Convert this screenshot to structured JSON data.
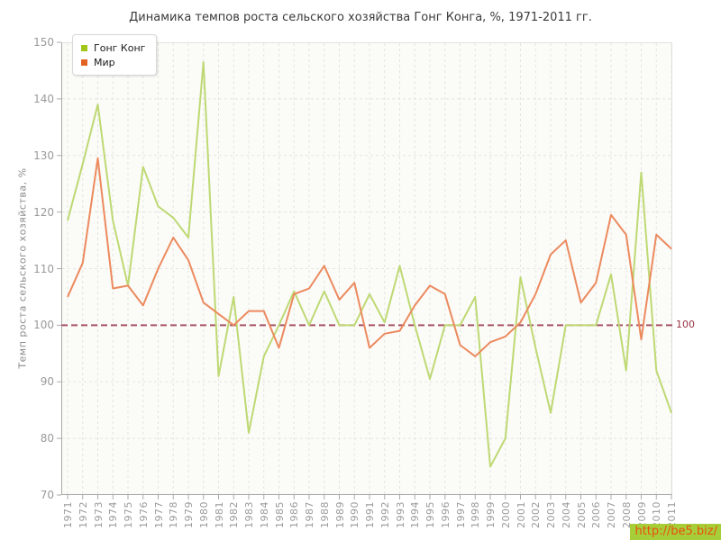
{
  "title": "Динамика темпов роста сельского хозяйства Гонг Конга, %, 1971-2011 гг.",
  "legend": {
    "items": [
      {
        "label": "Гонг Конг",
        "marker_color": "#a2c617"
      },
      {
        "label": "Мир",
        "marker_color": "#e2621f"
      }
    ]
  },
  "y_axis": {
    "title": "Темп роста сельского хозяйства, %",
    "ticks": [
      70,
      80,
      90,
      100,
      110,
      120,
      130,
      140,
      150
    ]
  },
  "guide": {
    "value": 100,
    "label": "100",
    "line_color": "#aa5566",
    "label_color": "#993344"
  },
  "watermark": {
    "text": "http://be5.biz/",
    "bg_color": "#a6ce39",
    "text_color": "#e94f10"
  },
  "chart_data": {
    "type": "line",
    "title": "Динамика темпов роста сельского хозяйства Гонг Конга, %, 1971-2011 гг.",
    "xlabel": "",
    "ylabel": "Темп роста сельского хозяйства, %",
    "ylim": [
      70,
      150
    ],
    "grid": "dashed",
    "legend_position": "top-left",
    "guide_line_y": 100,
    "x": [
      1971,
      1972,
      1973,
      1974,
      1975,
      1976,
      1977,
      1978,
      1979,
      1980,
      1981,
      1982,
      1983,
      1984,
      1985,
      1986,
      1987,
      1988,
      1989,
      1990,
      1991,
      1992,
      1993,
      1994,
      1995,
      1996,
      1997,
      1998,
      1999,
      2000,
      2001,
      2002,
      2003,
      2004,
      2005,
      2006,
      2007,
      2008,
      2009,
      2010,
      2011
    ],
    "series": [
      {
        "name": "Гонг Конг",
        "color": "#bed973",
        "values": [
          118.5,
          128.5,
          139,
          118.5,
          107,
          128,
          121,
          119,
          115.5,
          146.5,
          91,
          105,
          81,
          94.5,
          100,
          106,
          100,
          106,
          100,
          100,
          105.5,
          100.5,
          110.5,
          100,
          90.5,
          100,
          100,
          105,
          75,
          80,
          108.5,
          96,
          84.5,
          100,
          100,
          100,
          109,
          92,
          127,
          92,
          84.5
        ]
      },
      {
        "name": "Мир",
        "color": "#ec8a5e",
        "values": [
          105,
          111,
          129.5,
          106.5,
          107,
          103.5,
          110,
          115.5,
          111.5,
          104,
          102,
          100,
          102.5,
          102.5,
          96,
          105.5,
          106.5,
          110.5,
          104.5,
          107.5,
          96,
          98.5,
          99,
          103.5,
          107,
          105.5,
          96.5,
          94.5,
          97,
          98,
          100.5,
          105.5,
          112.5,
          115,
          104,
          107.5,
          119.5,
          116,
          97.5,
          116,
          113.5
        ]
      }
    ]
  }
}
